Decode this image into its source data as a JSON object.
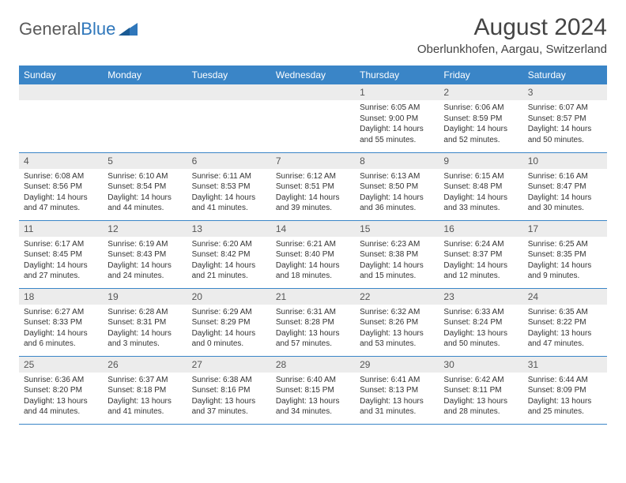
{
  "logo": {
    "text1": "General",
    "text2": "Blue"
  },
  "title": "August 2024",
  "location": "Oberlunkhofen, Aargau, Switzerland",
  "colors": {
    "header_bg": "#3a85c7",
    "header_text": "#ffffff",
    "daynum_bg": "#ececec",
    "cell_border": "#3a85c7",
    "logo_gray": "#5a5a5a",
    "logo_blue": "#2f77bb",
    "title_color": "#444444"
  },
  "day_headers": [
    "Sunday",
    "Monday",
    "Tuesday",
    "Wednesday",
    "Thursday",
    "Friday",
    "Saturday"
  ],
  "weeks": [
    [
      {
        "n": "",
        "sunrise": "",
        "sunset": "",
        "daylight": ""
      },
      {
        "n": "",
        "sunrise": "",
        "sunset": "",
        "daylight": ""
      },
      {
        "n": "",
        "sunrise": "",
        "sunset": "",
        "daylight": ""
      },
      {
        "n": "",
        "sunrise": "",
        "sunset": "",
        "daylight": ""
      },
      {
        "n": "1",
        "sunrise": "Sunrise: 6:05 AM",
        "sunset": "Sunset: 9:00 PM",
        "daylight": "Daylight: 14 hours and 55 minutes."
      },
      {
        "n": "2",
        "sunrise": "Sunrise: 6:06 AM",
        "sunset": "Sunset: 8:59 PM",
        "daylight": "Daylight: 14 hours and 52 minutes."
      },
      {
        "n": "3",
        "sunrise": "Sunrise: 6:07 AM",
        "sunset": "Sunset: 8:57 PM",
        "daylight": "Daylight: 14 hours and 50 minutes."
      }
    ],
    [
      {
        "n": "4",
        "sunrise": "Sunrise: 6:08 AM",
        "sunset": "Sunset: 8:56 PM",
        "daylight": "Daylight: 14 hours and 47 minutes."
      },
      {
        "n": "5",
        "sunrise": "Sunrise: 6:10 AM",
        "sunset": "Sunset: 8:54 PM",
        "daylight": "Daylight: 14 hours and 44 minutes."
      },
      {
        "n": "6",
        "sunrise": "Sunrise: 6:11 AM",
        "sunset": "Sunset: 8:53 PM",
        "daylight": "Daylight: 14 hours and 41 minutes."
      },
      {
        "n": "7",
        "sunrise": "Sunrise: 6:12 AM",
        "sunset": "Sunset: 8:51 PM",
        "daylight": "Daylight: 14 hours and 39 minutes."
      },
      {
        "n": "8",
        "sunrise": "Sunrise: 6:13 AM",
        "sunset": "Sunset: 8:50 PM",
        "daylight": "Daylight: 14 hours and 36 minutes."
      },
      {
        "n": "9",
        "sunrise": "Sunrise: 6:15 AM",
        "sunset": "Sunset: 8:48 PM",
        "daylight": "Daylight: 14 hours and 33 minutes."
      },
      {
        "n": "10",
        "sunrise": "Sunrise: 6:16 AM",
        "sunset": "Sunset: 8:47 PM",
        "daylight": "Daylight: 14 hours and 30 minutes."
      }
    ],
    [
      {
        "n": "11",
        "sunrise": "Sunrise: 6:17 AM",
        "sunset": "Sunset: 8:45 PM",
        "daylight": "Daylight: 14 hours and 27 minutes."
      },
      {
        "n": "12",
        "sunrise": "Sunrise: 6:19 AM",
        "sunset": "Sunset: 8:43 PM",
        "daylight": "Daylight: 14 hours and 24 minutes."
      },
      {
        "n": "13",
        "sunrise": "Sunrise: 6:20 AM",
        "sunset": "Sunset: 8:42 PM",
        "daylight": "Daylight: 14 hours and 21 minutes."
      },
      {
        "n": "14",
        "sunrise": "Sunrise: 6:21 AM",
        "sunset": "Sunset: 8:40 PM",
        "daylight": "Daylight: 14 hours and 18 minutes."
      },
      {
        "n": "15",
        "sunrise": "Sunrise: 6:23 AM",
        "sunset": "Sunset: 8:38 PM",
        "daylight": "Daylight: 14 hours and 15 minutes."
      },
      {
        "n": "16",
        "sunrise": "Sunrise: 6:24 AM",
        "sunset": "Sunset: 8:37 PM",
        "daylight": "Daylight: 14 hours and 12 minutes."
      },
      {
        "n": "17",
        "sunrise": "Sunrise: 6:25 AM",
        "sunset": "Sunset: 8:35 PM",
        "daylight": "Daylight: 14 hours and 9 minutes."
      }
    ],
    [
      {
        "n": "18",
        "sunrise": "Sunrise: 6:27 AM",
        "sunset": "Sunset: 8:33 PM",
        "daylight": "Daylight: 14 hours and 6 minutes."
      },
      {
        "n": "19",
        "sunrise": "Sunrise: 6:28 AM",
        "sunset": "Sunset: 8:31 PM",
        "daylight": "Daylight: 14 hours and 3 minutes."
      },
      {
        "n": "20",
        "sunrise": "Sunrise: 6:29 AM",
        "sunset": "Sunset: 8:29 PM",
        "daylight": "Daylight: 14 hours and 0 minutes."
      },
      {
        "n": "21",
        "sunrise": "Sunrise: 6:31 AM",
        "sunset": "Sunset: 8:28 PM",
        "daylight": "Daylight: 13 hours and 57 minutes."
      },
      {
        "n": "22",
        "sunrise": "Sunrise: 6:32 AM",
        "sunset": "Sunset: 8:26 PM",
        "daylight": "Daylight: 13 hours and 53 minutes."
      },
      {
        "n": "23",
        "sunrise": "Sunrise: 6:33 AM",
        "sunset": "Sunset: 8:24 PM",
        "daylight": "Daylight: 13 hours and 50 minutes."
      },
      {
        "n": "24",
        "sunrise": "Sunrise: 6:35 AM",
        "sunset": "Sunset: 8:22 PM",
        "daylight": "Daylight: 13 hours and 47 minutes."
      }
    ],
    [
      {
        "n": "25",
        "sunrise": "Sunrise: 6:36 AM",
        "sunset": "Sunset: 8:20 PM",
        "daylight": "Daylight: 13 hours and 44 minutes."
      },
      {
        "n": "26",
        "sunrise": "Sunrise: 6:37 AM",
        "sunset": "Sunset: 8:18 PM",
        "daylight": "Daylight: 13 hours and 41 minutes."
      },
      {
        "n": "27",
        "sunrise": "Sunrise: 6:38 AM",
        "sunset": "Sunset: 8:16 PM",
        "daylight": "Daylight: 13 hours and 37 minutes."
      },
      {
        "n": "28",
        "sunrise": "Sunrise: 6:40 AM",
        "sunset": "Sunset: 8:15 PM",
        "daylight": "Daylight: 13 hours and 34 minutes."
      },
      {
        "n": "29",
        "sunrise": "Sunrise: 6:41 AM",
        "sunset": "Sunset: 8:13 PM",
        "daylight": "Daylight: 13 hours and 31 minutes."
      },
      {
        "n": "30",
        "sunrise": "Sunrise: 6:42 AM",
        "sunset": "Sunset: 8:11 PM",
        "daylight": "Daylight: 13 hours and 28 minutes."
      },
      {
        "n": "31",
        "sunrise": "Sunrise: 6:44 AM",
        "sunset": "Sunset: 8:09 PM",
        "daylight": "Daylight: 13 hours and 25 minutes."
      }
    ]
  ]
}
